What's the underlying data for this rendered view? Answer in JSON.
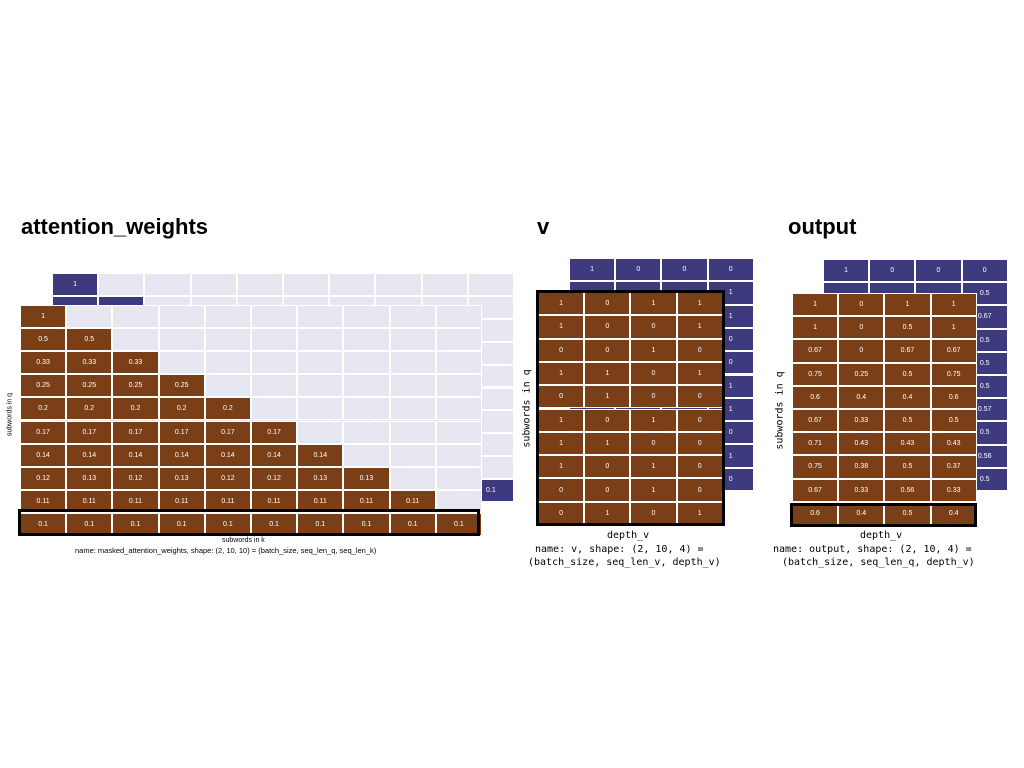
{
  "titles": {
    "attention": "attention_weights",
    "v": "v",
    "output": "output"
  },
  "attention_panel": {
    "back_first_value": "1",
    "back_last_value": "0.1",
    "front_values": [
      [
        "1"
      ],
      [
        "0.5",
        "0.5"
      ],
      [
        "0.33",
        "0.33",
        "0.33"
      ],
      [
        "0.25",
        "0.25",
        "0.25",
        "0.25"
      ],
      [
        "0.2",
        "0.2",
        "0.2",
        "0.2",
        "0.2"
      ],
      [
        "0.17",
        "0.17",
        "0.17",
        "0.17",
        "0.17",
        "0.17"
      ],
      [
        "0.14",
        "0.14",
        "0.14",
        "0.14",
        "0.14",
        "0.14",
        "0.14"
      ],
      [
        "0.12",
        "0.13",
        "0.12",
        "0.13",
        "0.12",
        "0.12",
        "0.13",
        "0.13"
      ],
      [
        "0.11",
        "0.11",
        "0.11",
        "0.11",
        "0.11",
        "0.11",
        "0.11",
        "0.11",
        "0.11"
      ],
      [
        "0.1",
        "0.1",
        "0.1",
        "0.1",
        "0.1",
        "0.1",
        "0.1",
        "0.1",
        "0.1",
        "0.1"
      ]
    ],
    "ylabel": "subwords in q",
    "xlabel": "subwords in k",
    "caption": "name: masked_attention_weights, shape: (2, 10, 10) = (batch_size, seq_len_q, seq_len_k)"
  },
  "v_panel": {
    "back_top_row": [
      "1",
      "0",
      "0",
      "0"
    ],
    "back_side_values": [
      "1",
      "1",
      "0",
      "0",
      "1",
      "1",
      "0",
      "1",
      "0"
    ],
    "front_values": [
      [
        "1",
        "0",
        "1",
        "1"
      ],
      [
        "1",
        "0",
        "0",
        "1"
      ],
      [
        "0",
        "0",
        "1",
        "0"
      ],
      [
        "1",
        "1",
        "0",
        "1"
      ],
      [
        "0",
        "1",
        "0",
        "0"
      ],
      [
        "1",
        "0",
        "1",
        "0"
      ],
      [
        "1",
        "1",
        "0",
        "0"
      ],
      [
        "1",
        "0",
        "1",
        "0"
      ],
      [
        "0",
        "0",
        "1",
        "0"
      ],
      [
        "0",
        "1",
        "0",
        "1"
      ]
    ],
    "ylabel": "subwords in q",
    "xlabel": "depth_v",
    "caption_line1": "name: v, shape: (2, 10, 4) =",
    "caption_line2": "(batch_size, seq_len_v, depth_v)"
  },
  "output_panel": {
    "back_top_row": [
      "1",
      "0",
      "0",
      "0"
    ],
    "back_side_values": [
      "0.5",
      "0.67",
      "0.5",
      "0.5",
      "0.5",
      "0.57",
      "0.5",
      "0.56",
      "0.5"
    ],
    "front_values": [
      [
        "1",
        "0",
        "1",
        "1"
      ],
      [
        "1",
        "0",
        "0.5",
        "1"
      ],
      [
        "0.67",
        "0",
        "0.67",
        "0.67"
      ],
      [
        "0.75",
        "0.25",
        "0.5",
        "0.75"
      ],
      [
        "0.6",
        "0.4",
        "0.4",
        "0.6"
      ],
      [
        "0.67",
        "0.33",
        "0.5",
        "0.5"
      ],
      [
        "0.71",
        "0.43",
        "0.43",
        "0.43"
      ],
      [
        "0.75",
        "0.38",
        "0.5",
        "0.37"
      ],
      [
        "0.67",
        "0.33",
        "0.56",
        "0.33"
      ],
      [
        "0.6",
        "0.4",
        "0.5",
        "0.4"
      ]
    ],
    "ylabel": "subwords in q",
    "xlabel": "depth_v",
    "caption_line1": "name: output, shape: (2, 10, 4) =",
    "caption_line2": "(batch_size, seq_len_q, depth_v)"
  },
  "colors": {
    "filled": "#7b3f17",
    "back_filled": "#3d3b7e",
    "empty": "#e6e7f0",
    "highlight_border": "#000000"
  }
}
